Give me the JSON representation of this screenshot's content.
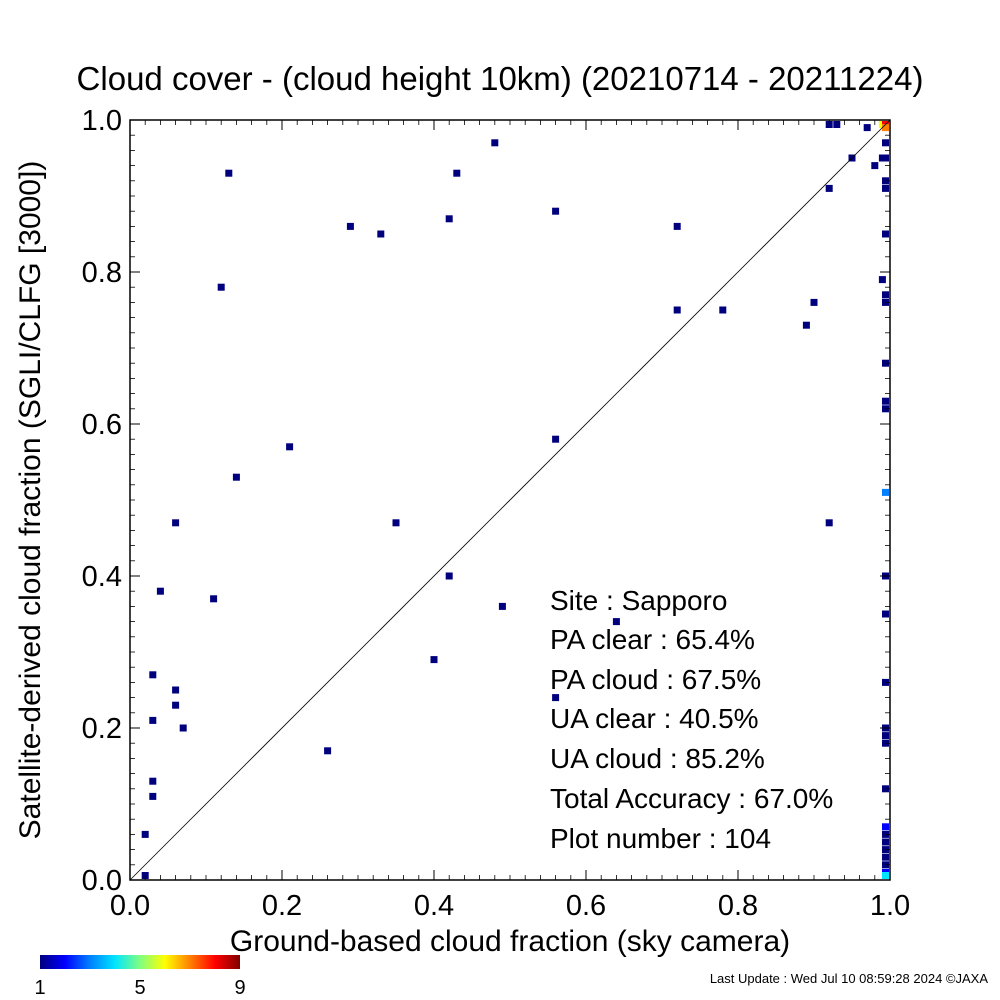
{
  "chart_data": {
    "type": "scatter",
    "title": "Cloud cover - (cloud height 10km)  (20210714 - 20211224)",
    "xlabel": "Ground-based cloud fraction (sky camera)",
    "ylabel": "Satellite-derived cloud fraction (SGLI/CLFG [3000])",
    "xlim": [
      0,
      1
    ],
    "ylim": [
      0,
      1
    ],
    "xticks": [
      "0.0",
      "0.2",
      "0.4",
      "0.6",
      "0.8",
      "1.0"
    ],
    "yticks": [
      "0.0",
      "0.2",
      "0.4",
      "0.6",
      "0.8",
      "1.0"
    ],
    "grid": false,
    "diagonal": "y = x reference line",
    "colorbar": {
      "ticks": [
        "1",
        "5",
        "9"
      ],
      "colors": [
        "#00007f",
        "#0000ff",
        "#0080ff",
        "#00e5ff",
        "#80ff80",
        "#ffff00",
        "#ff8000",
        "#ff0000",
        "#7f0000"
      ]
    },
    "stats": [
      {
        "label": "Site : Sapporo"
      },
      {
        "label": "PA clear :  65.4%"
      },
      {
        "label": "PA cloud :  67.5%"
      },
      {
        "label": "UA clear :  40.5%"
      },
      {
        "label": "UA cloud :  85.2%"
      },
      {
        "label": "Total Accuracy :  67.0%"
      },
      {
        "label": "Plot number :       104"
      }
    ],
    "footer": "Last Update : Wed Jul 10 08:59:28 2024  ©JAXA",
    "points": [
      {
        "x": 0.02,
        "y": 0.0,
        "c": 1
      },
      {
        "x": 0.02,
        "y": 0.06,
        "c": 1
      },
      {
        "x": 0.03,
        "y": 0.11,
        "c": 1
      },
      {
        "x": 0.03,
        "y": 0.13,
        "c": 1
      },
      {
        "x": 0.03,
        "y": 0.21,
        "c": 1
      },
      {
        "x": 0.03,
        "y": 0.27,
        "c": 1
      },
      {
        "x": 0.04,
        "y": 0.38,
        "c": 1
      },
      {
        "x": 0.06,
        "y": 0.47,
        "c": 1
      },
      {
        "x": 0.06,
        "y": 0.25,
        "c": 1
      },
      {
        "x": 0.06,
        "y": 0.23,
        "c": 1
      },
      {
        "x": 0.07,
        "y": 0.2,
        "c": 1
      },
      {
        "x": 0.11,
        "y": 0.37,
        "c": 1
      },
      {
        "x": 0.12,
        "y": 0.78,
        "c": 1
      },
      {
        "x": 0.13,
        "y": 0.93,
        "c": 1
      },
      {
        "x": 0.14,
        "y": 0.53,
        "c": 1
      },
      {
        "x": 0.21,
        "y": 0.57,
        "c": 1
      },
      {
        "x": 0.26,
        "y": 0.17,
        "c": 1
      },
      {
        "x": 0.29,
        "y": 0.86,
        "c": 1
      },
      {
        "x": 0.33,
        "y": 0.85,
        "c": 1
      },
      {
        "x": 0.35,
        "y": 0.47,
        "c": 1
      },
      {
        "x": 0.4,
        "y": 0.29,
        "c": 1
      },
      {
        "x": 0.42,
        "y": 0.87,
        "c": 1
      },
      {
        "x": 0.42,
        "y": 0.4,
        "c": 1
      },
      {
        "x": 0.43,
        "y": 0.93,
        "c": 1
      },
      {
        "x": 0.48,
        "y": 0.97,
        "c": 1
      },
      {
        "x": 0.49,
        "y": 0.36,
        "c": 1
      },
      {
        "x": 0.56,
        "y": 0.88,
        "c": 1
      },
      {
        "x": 0.56,
        "y": 0.58,
        "c": 1
      },
      {
        "x": 0.56,
        "y": 0.24,
        "c": 1
      },
      {
        "x": 0.64,
        "y": 0.34,
        "c": 1
      },
      {
        "x": 0.72,
        "y": 0.86,
        "c": 1
      },
      {
        "x": 0.72,
        "y": 0.75,
        "c": 1
      },
      {
        "x": 0.78,
        "y": 0.75,
        "c": 1
      },
      {
        "x": 0.89,
        "y": 0.73,
        "c": 1
      },
      {
        "x": 0.9,
        "y": 0.76,
        "c": 1
      },
      {
        "x": 0.92,
        "y": 0.91,
        "c": 1
      },
      {
        "x": 0.92,
        "y": 0.47,
        "c": 1
      },
      {
        "x": 0.92,
        "y": 1.0,
        "c": 1
      },
      {
        "x": 0.93,
        "y": 1.0,
        "c": 1
      },
      {
        "x": 0.95,
        "y": 0.95,
        "c": 1
      },
      {
        "x": 0.97,
        "y": 0.99,
        "c": 1
      },
      {
        "x": 0.98,
        "y": 0.94,
        "c": 1
      },
      {
        "x": 0.99,
        "y": 0.95,
        "c": 1
      },
      {
        "x": 0.99,
        "y": 0.79,
        "c": 1
      },
      {
        "x": 0.99,
        "y": 1.0,
        "c": 6
      },
      {
        "x": 1.0,
        "y": 1.0,
        "c": 8
      },
      {
        "x": 1.0,
        "y": 0.99,
        "c": 7
      },
      {
        "x": 1.0,
        "y": 0.97,
        "c": 1
      },
      {
        "x": 1.0,
        "y": 0.95,
        "c": 1
      },
      {
        "x": 1.0,
        "y": 0.92,
        "c": 1
      },
      {
        "x": 1.0,
        "y": 0.91,
        "c": 1
      },
      {
        "x": 1.0,
        "y": 0.85,
        "c": 1
      },
      {
        "x": 1.0,
        "y": 0.77,
        "c": 1
      },
      {
        "x": 1.0,
        "y": 0.76,
        "c": 1
      },
      {
        "x": 1.0,
        "y": 0.68,
        "c": 1
      },
      {
        "x": 1.0,
        "y": 0.63,
        "c": 1
      },
      {
        "x": 1.0,
        "y": 0.62,
        "c": 1
      },
      {
        "x": 1.0,
        "y": 0.51,
        "c": 3
      },
      {
        "x": 1.0,
        "y": 0.4,
        "c": 1
      },
      {
        "x": 1.0,
        "y": 0.35,
        "c": 1
      },
      {
        "x": 1.0,
        "y": 0.26,
        "c": 1
      },
      {
        "x": 1.0,
        "y": 0.2,
        "c": 1
      },
      {
        "x": 1.0,
        "y": 0.19,
        "c": 1
      },
      {
        "x": 1.0,
        "y": 0.18,
        "c": 1
      },
      {
        "x": 1.0,
        "y": 0.12,
        "c": 1
      },
      {
        "x": 1.0,
        "y": 0.07,
        "c": 2
      },
      {
        "x": 1.0,
        "y": 0.06,
        "c": 1
      },
      {
        "x": 1.0,
        "y": 0.05,
        "c": 1
      },
      {
        "x": 1.0,
        "y": 0.04,
        "c": 1
      },
      {
        "x": 1.0,
        "y": 0.03,
        "c": 1
      },
      {
        "x": 1.0,
        "y": 0.02,
        "c": 1
      },
      {
        "x": 1.0,
        "y": 0.01,
        "c": 2
      },
      {
        "x": 1.0,
        "y": 0.0,
        "c": 4
      }
    ]
  }
}
